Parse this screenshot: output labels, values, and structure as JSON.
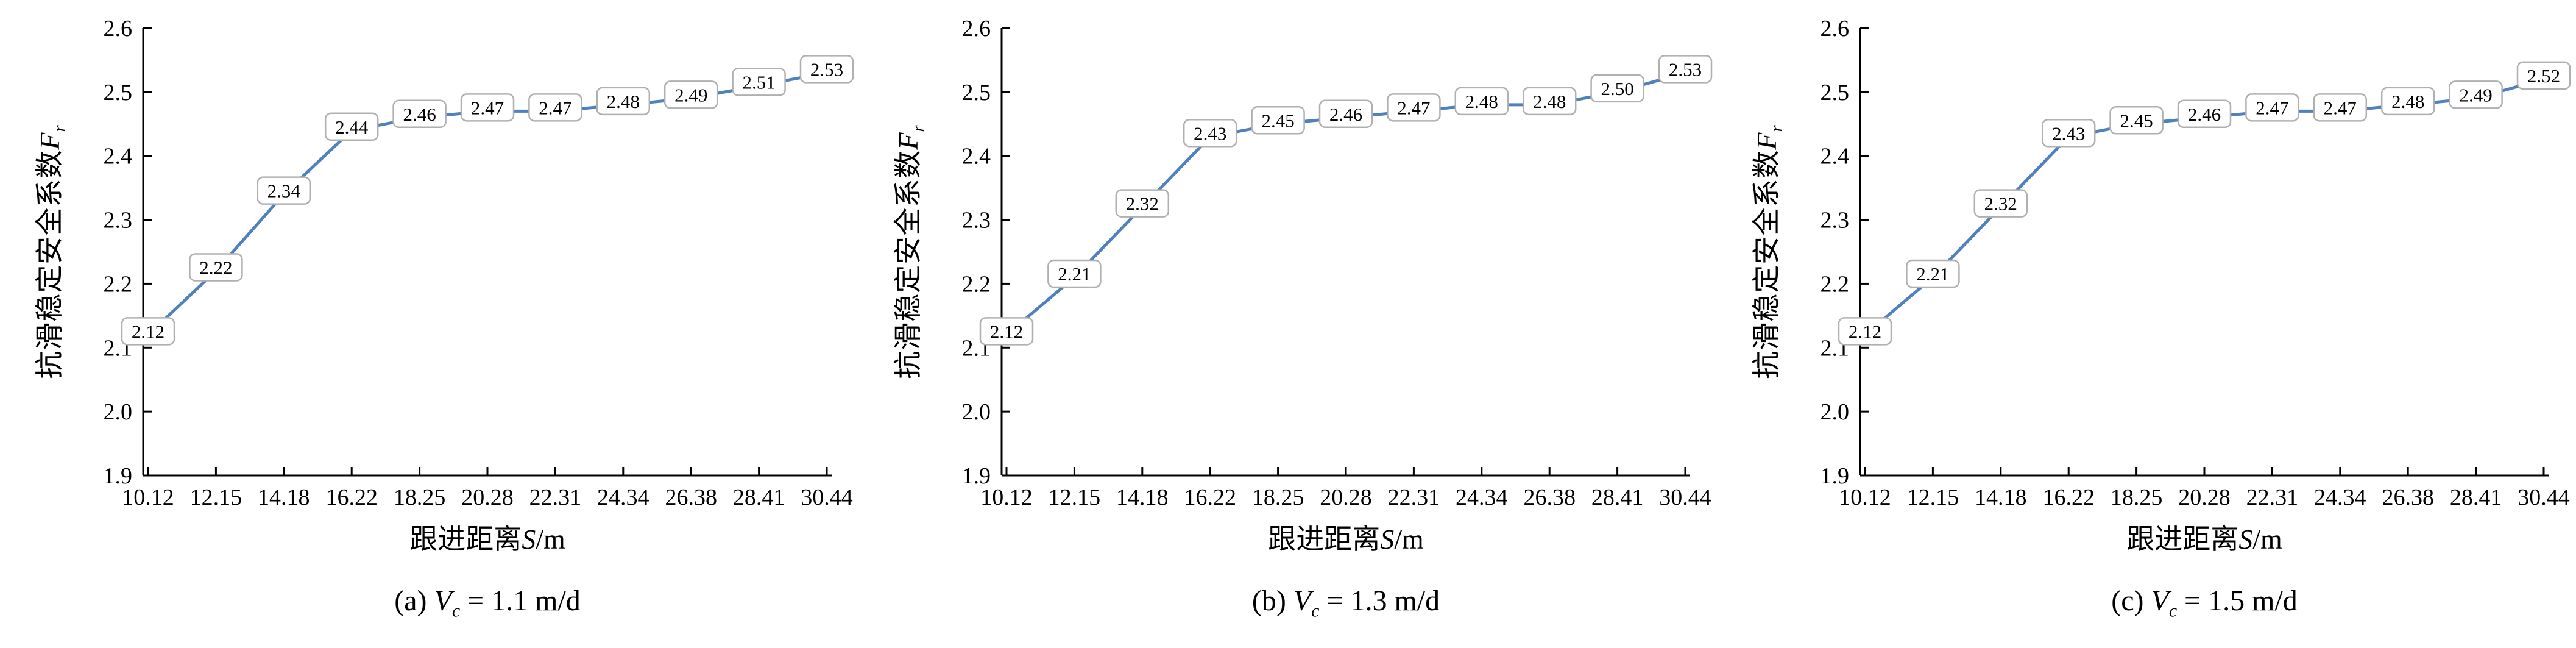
{
  "chart_data": {
    "type": "line",
    "title": "",
    "categories": [
      "10.12",
      "12.15",
      "14.18",
      "16.22",
      "18.25",
      "20.28",
      "22.31",
      "24.34",
      "26.38",
      "28.41",
      "30.44"
    ],
    "y_ticks": [
      1.9,
      2.0,
      2.1,
      2.2,
      2.3,
      2.4,
      2.5,
      2.6
    ],
    "ylim": [
      1.9,
      2.6
    ],
    "grid": "off",
    "legend": "none",
    "line_color": "#4f81bd",
    "label_box_border": "#b0b0b0",
    "xlabel": {
      "prefix": "跟进距离",
      "var": "S",
      "suffix": "/m"
    },
    "ylabel": {
      "prefix": "抗滑稳定安全系数",
      "var": "F",
      "sub": "r"
    },
    "charts": [
      {
        "caption": {
          "prefix": "(a) ",
          "var": "V",
          "sub": "c",
          "rest": " = 1.1 m/d"
        },
        "values": [
          2.12,
          2.22,
          2.34,
          2.44,
          2.46,
          2.47,
          2.47,
          2.48,
          2.49,
          2.51,
          2.53
        ]
      },
      {
        "caption": {
          "prefix": "(b) ",
          "var": "V",
          "sub": "c",
          "rest": " = 1.3 m/d"
        },
        "values": [
          2.12,
          2.21,
          2.32,
          2.43,
          2.45,
          2.46,
          2.47,
          2.48,
          2.48,
          2.5,
          2.53
        ]
      },
      {
        "caption": {
          "prefix": "(c) ",
          "var": "V",
          "sub": "c",
          "rest": " = 1.5 m/d"
        },
        "values": [
          2.12,
          2.21,
          2.32,
          2.43,
          2.45,
          2.46,
          2.47,
          2.47,
          2.48,
          2.49,
          2.52
        ]
      }
    ]
  }
}
